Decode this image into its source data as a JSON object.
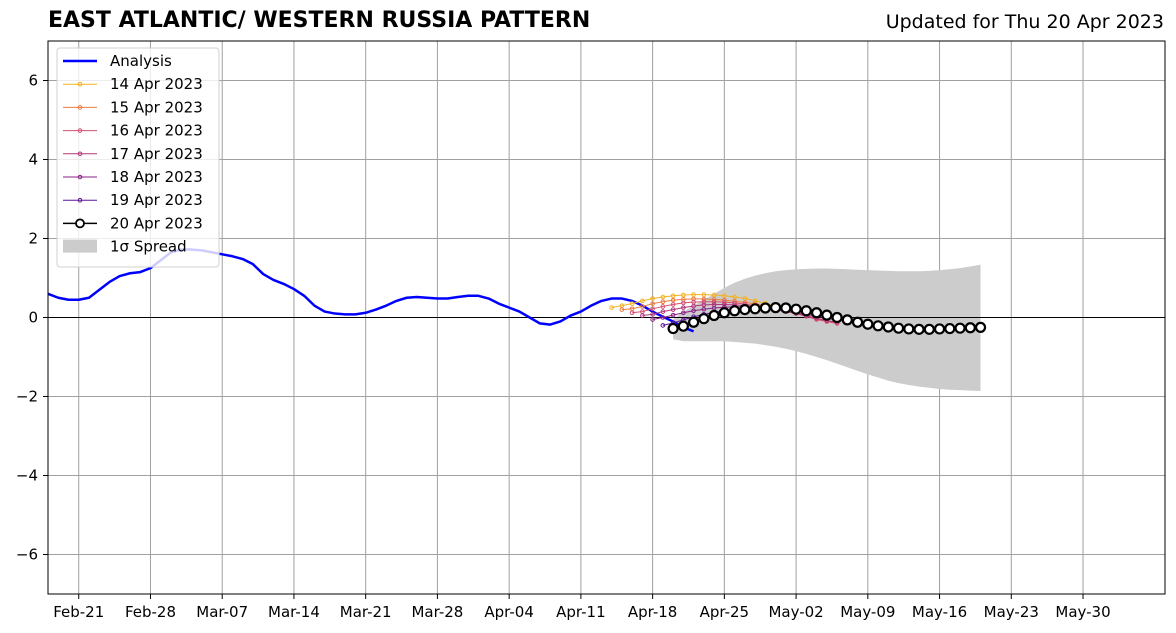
{
  "header": {
    "title": "EAST ATLANTIC/ WESTERN RUSSIA PATTERN",
    "updated": "Updated for Thu 20 Apr 2023"
  },
  "chart_data": {
    "type": "line",
    "title": "EAST ATLANTIC/ WESTERN RUSSIA PATTERN",
    "xlabel": "",
    "ylabel": "",
    "x_start": "2023-02-18",
    "x_end": "2023-06-07",
    "ylim": [
      -7,
      7
    ],
    "grid": true,
    "legend_position": "top-left",
    "x_ticks": [
      "Feb-21",
      "Feb-28",
      "Mar-07",
      "Mar-14",
      "Mar-21",
      "Mar-28",
      "Apr-04",
      "Apr-11",
      "Apr-18",
      "Apr-25",
      "May-02",
      "May-09",
      "May-16",
      "May-23",
      "May-30"
    ],
    "x_tick_dates": [
      "2023-02-21",
      "2023-02-28",
      "2023-03-07",
      "2023-03-14",
      "2023-03-21",
      "2023-03-28",
      "2023-04-04",
      "2023-04-11",
      "2023-04-18",
      "2023-04-25",
      "2023-05-02",
      "2023-05-09",
      "2023-05-16",
      "2023-05-23",
      "2023-05-30"
    ],
    "y_ticks": [
      6,
      4,
      2,
      0,
      -2,
      -4,
      -6
    ],
    "y_tick_labels": [
      "6",
      "4",
      "2",
      "0",
      "−2",
      "−4",
      "−6"
    ],
    "analysis": {
      "name": "Analysis",
      "color": "#0000ff",
      "start": "2023-02-18",
      "values": [
        0.6,
        0.5,
        0.45,
        0.45,
        0.5,
        0.7,
        0.9,
        1.05,
        1.12,
        1.15,
        1.25,
        1.45,
        1.65,
        1.72,
        1.72,
        1.7,
        1.65,
        1.6,
        1.55,
        1.48,
        1.35,
        1.1,
        0.95,
        0.85,
        0.72,
        0.55,
        0.3,
        0.15,
        0.1,
        0.08,
        0.08,
        0.12,
        0.2,
        0.3,
        0.42,
        0.5,
        0.52,
        0.5,
        0.48,
        0.48,
        0.52,
        0.55,
        0.55,
        0.48,
        0.35,
        0.25,
        0.15,
        0.0,
        -0.15,
        -0.18,
        -0.1,
        0.05,
        0.15,
        0.3,
        0.42,
        0.48,
        0.48,
        0.42,
        0.3,
        0.15,
        0.02,
        -0.1,
        -0.25,
        -0.35
      ]
    },
    "forecasts": [
      {
        "name": "14 Apr 2023",
        "color": "#f5b021",
        "start": "2023-04-14",
        "values": [
          0.25,
          0.3,
          0.35,
          0.42,
          0.48,
          0.52,
          0.55,
          0.57,
          0.58,
          0.58,
          0.57,
          0.55,
          0.52,
          0.48,
          0.42,
          0.36,
          0.3,
          0.25,
          0.2
        ]
      },
      {
        "name": "15 Apr 2023",
        "color": "#ed7a3f",
        "start": "2023-04-15",
        "values": [
          0.2,
          0.22,
          0.28,
          0.35,
          0.4,
          0.44,
          0.46,
          0.47,
          0.47,
          0.46,
          0.44,
          0.41,
          0.38,
          0.35,
          0.3,
          0.25,
          0.2,
          0.12,
          0.05,
          -0.03,
          -0.1,
          -0.15
        ]
      },
      {
        "name": "16 Apr 2023",
        "color": "#d54f6e",
        "start": "2023-04-16",
        "values": [
          0.12,
          0.15,
          0.22,
          0.28,
          0.33,
          0.37,
          0.39,
          0.4,
          0.4,
          0.39,
          0.37,
          0.34,
          0.3,
          0.26,
          0.21,
          0.15,
          0.1,
          0.03,
          -0.05,
          -0.1,
          -0.15
        ]
      },
      {
        "name": "17 Apr 2023",
        "color": "#b0357a",
        "start": "2023-04-17",
        "values": [
          0.05,
          0.08,
          0.15,
          0.2,
          0.25,
          0.29,
          0.32,
          0.33,
          0.33,
          0.32,
          0.3,
          0.28,
          0.24,
          0.2,
          0.16,
          0.1,
          0.04,
          -0.02,
          -0.08,
          -0.12
        ]
      },
      {
        "name": "18 Apr 2023",
        "color": "#8a2185",
        "start": "2023-04-18",
        "values": [
          -0.05,
          0.0,
          0.06,
          0.12,
          0.17,
          0.21,
          0.24,
          0.26,
          0.27,
          0.27,
          0.26,
          0.24,
          0.21,
          0.18,
          0.13,
          0.08,
          0.03,
          -0.02,
          -0.07
        ]
      },
      {
        "name": "19 Apr 2023",
        "color": "#5c1694",
        "start": "2023-04-19",
        "values": [
          -0.2,
          -0.14,
          -0.06,
          0.02,
          0.08,
          0.13,
          0.17,
          0.2,
          0.22,
          0.23,
          0.23,
          0.22,
          0.2,
          0.17,
          0.13,
          0.08,
          0.03,
          -0.02,
          -0.06
        ]
      },
      {
        "name": "20 Apr 2023",
        "color": "#000000",
        "start": "2023-04-20",
        "values": [
          -0.28,
          -0.22,
          -0.12,
          -0.03,
          0.05,
          0.12,
          0.17,
          0.2,
          0.22,
          0.24,
          0.25,
          0.24,
          0.21,
          0.17,
          0.12,
          0.06,
          0.0,
          -0.06,
          -0.12,
          -0.17,
          -0.21,
          -0.24,
          -0.27,
          -0.29,
          -0.3,
          -0.3,
          -0.29,
          -0.28,
          -0.27,
          -0.26,
          -0.25
        ]
      }
    ],
    "spread": {
      "name": "1σ Spread",
      "color": "#cccccc",
      "start": "2023-04-20",
      "upper": [
        -0.05,
        0.15,
        0.3,
        0.45,
        0.6,
        0.75,
        0.88,
        0.98,
        1.06,
        1.12,
        1.17,
        1.2,
        1.22,
        1.23,
        1.24,
        1.24,
        1.23,
        1.22,
        1.21,
        1.2,
        1.19,
        1.18,
        1.17,
        1.17,
        1.17,
        1.18,
        1.2,
        1.22,
        1.25,
        1.29,
        1.34
      ],
      "lower": [
        -0.55,
        -0.6,
        -0.6,
        -0.6,
        -0.6,
        -0.6,
        -0.62,
        -0.64,
        -0.66,
        -0.7,
        -0.74,
        -0.79,
        -0.85,
        -0.92,
        -1.0,
        -1.08,
        -1.17,
        -1.26,
        -1.35,
        -1.44,
        -1.52,
        -1.6,
        -1.66,
        -1.71,
        -1.75,
        -1.78,
        -1.81,
        -1.83,
        -1.84,
        -1.85,
        -1.86
      ]
    },
    "legend": [
      "Analysis",
      "14 Apr 2023",
      "15 Apr 2023",
      "16 Apr 2023",
      "17 Apr 2023",
      "18 Apr 2023",
      "19 Apr 2023",
      "20 Apr 2023",
      "1σ Spread"
    ]
  }
}
